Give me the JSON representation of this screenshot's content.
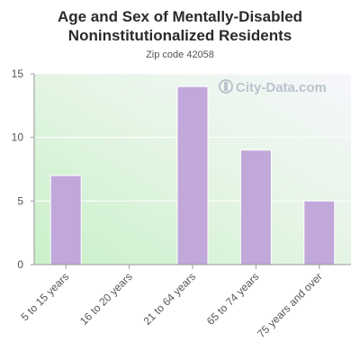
{
  "chart_data": {
    "type": "bar",
    "title": "Age and Sex of Mentally-Disabled Noninstitutionalized Residents",
    "subtitle": "Zip code 42058",
    "categories": [
      "5 to 15 years",
      "16 to 20 years",
      "21 to 64 years",
      "65 to 74 years",
      "75 years and over"
    ],
    "values": [
      7,
      0,
      14,
      9,
      5
    ],
    "ylim": [
      0,
      15
    ],
    "yticks": [
      0,
      5,
      10,
      15
    ],
    "grid": true,
    "bar_color": "#c0a8da",
    "watermark": "City-Data.com"
  }
}
